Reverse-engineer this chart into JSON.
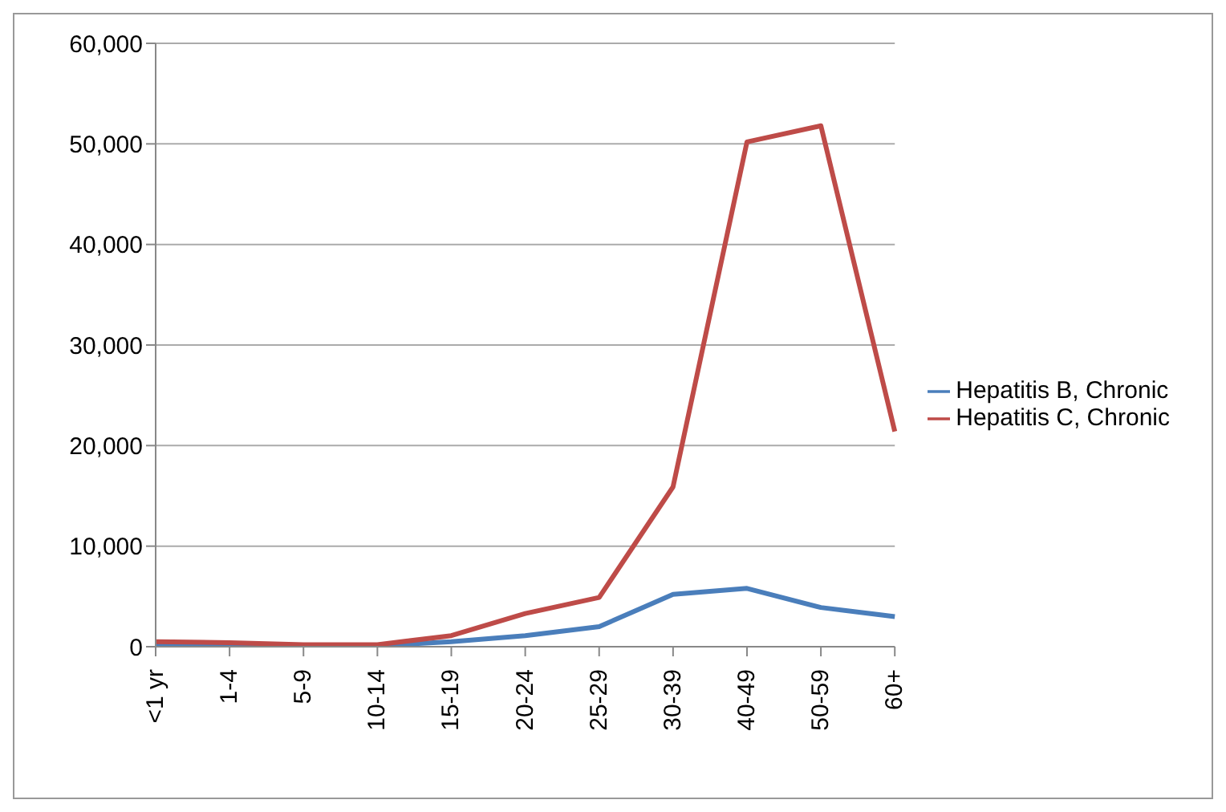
{
  "chart_data": {
    "type": "line",
    "categories": [
      "<1 yr",
      "1-4",
      "5-9",
      "10-14",
      "15-19",
      "20-24",
      "25-29",
      "30-39",
      "40-49",
      "50-59",
      "60+"
    ],
    "series": [
      {
        "name": "Hepatitis B, Chronic",
        "color": "#4a7ebb",
        "values": [
          100,
          100,
          100,
          100,
          500,
          1100,
          2000,
          5200,
          5800,
          3900,
          3000
        ]
      },
      {
        "name": "Hepatitis C, Chronic",
        "color": "#be4b48",
        "values": [
          500,
          400,
          200,
          200,
          1100,
          3300,
          4900,
          15900,
          50200,
          51800,
          21400
        ]
      }
    ],
    "ylim": [
      0,
      60000
    ],
    "yticks": [
      0,
      {
        "value": 10000,
        "label": "10,000"
      },
      {
        "value": 20000,
        "label": "20,000"
      },
      {
        "value": 30000,
        "label": "30,000"
      },
      {
        "value": 40000,
        "label": "40,000"
      },
      {
        "value": 50000,
        "label": "50,000"
      },
      {
        "value": 60000,
        "label": "60,000"
      }
    ],
    "grid": "y",
    "legend": "right",
    "marker": "none",
    "line_style": "solid"
  }
}
